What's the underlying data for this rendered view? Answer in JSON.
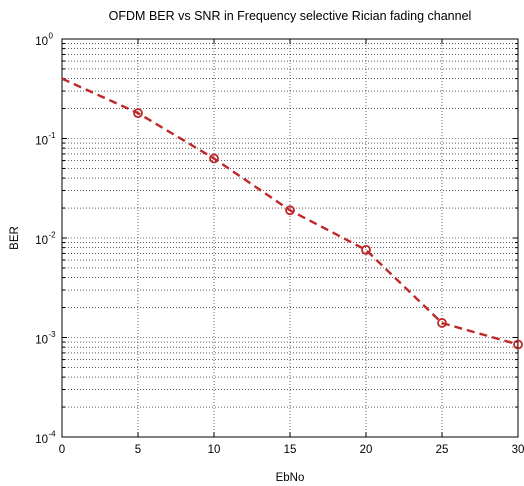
{
  "chart_data": {
    "type": "line",
    "title": "OFDM BER vs SNR in Frequency selective Rician fading channel",
    "xlabel": "EbNo",
    "ylabel": "BER",
    "xlim": [
      0,
      30
    ],
    "ylim": [
      0.0001,
      1
    ],
    "yscale": "log",
    "grid": true,
    "x_ticks": [
      "0",
      "5",
      "10",
      "15",
      "20",
      "25",
      "30"
    ],
    "y_ticks": [
      {
        "base": "10",
        "exp": "0"
      },
      {
        "base": "10",
        "exp": "-1"
      },
      {
        "base": "10",
        "exp": "-2"
      },
      {
        "base": "10",
        "exp": "-3"
      },
      {
        "base": "10",
        "exp": "-4"
      }
    ],
    "series": [
      {
        "color": "#c0282a",
        "line_style": "dashed",
        "marker": "circle",
        "x": [
          0,
          5,
          10,
          15,
          20,
          25,
          30
        ],
        "y": [
          0.4,
          0.18,
          0.063,
          0.019,
          0.0076,
          0.0014,
          0.00085
        ]
      }
    ]
  }
}
